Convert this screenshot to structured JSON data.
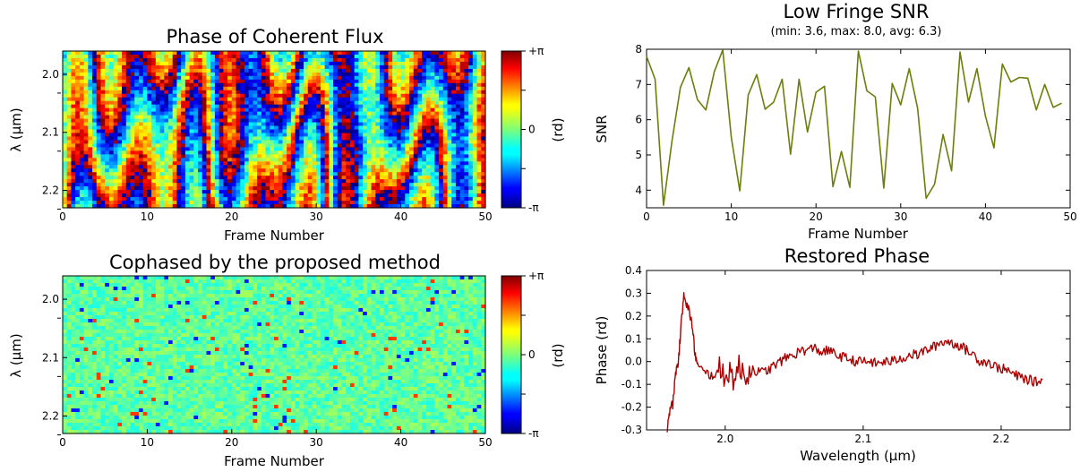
{
  "chart_data": [
    {
      "type": "heatmap",
      "title": "Phase of Coherent Flux",
      "xlabel": "Frame Number",
      "ylabel": "λ (µm)",
      "xlim": [
        0,
        50
      ],
      "ylim": [
        2.23,
        1.96
      ],
      "xticks": [
        "0",
        "10",
        "20",
        "30",
        "40",
        "50"
      ],
      "yticks": [
        "2.0",
        "2.1",
        "2.2"
      ],
      "colorbar": {
        "label": "(rd)",
        "ticks": [
          "+π",
          "0",
          "-π"
        ],
        "range": [
          -3.1416,
          3.1416
        ],
        "colormap": "jet"
      }
    },
    {
      "type": "line",
      "title": "Low Fringe SNR",
      "subtitle": "(min: 3.6, max: 8.0, avg: 6.3)",
      "xlabel": "Frame Number",
      "ylabel": "SNR",
      "xlim": [
        0,
        50
      ],
      "ylim": [
        3.5,
        8
      ],
      "xticks": [
        "0",
        "10",
        "20",
        "30",
        "40",
        "50"
      ],
      "yticks": [
        "4",
        "5",
        "6",
        "7",
        "8"
      ],
      "color": "#6b7f0a",
      "series": [
        {
          "x": [
            0,
            1,
            2,
            3,
            4,
            5,
            6,
            7,
            8,
            9,
            10,
            11,
            12,
            13,
            14,
            15,
            16,
            17,
            18,
            19,
            20,
            21,
            22,
            23,
            24,
            25,
            26,
            27,
            28,
            29,
            30,
            31,
            32,
            33,
            34,
            35,
            36,
            37,
            38,
            39,
            40,
            41,
            42,
            43,
            44,
            45,
            46,
            47,
            48,
            49
          ],
          "values": [
            7.8,
            7.15,
            3.57,
            5.4,
            6.92,
            7.48,
            6.57,
            6.28,
            7.37,
            7.98,
            5.5,
            3.98,
            6.7,
            7.28,
            6.3,
            6.5,
            7.15,
            5.02,
            7.15,
            5.65,
            6.78,
            6.95,
            4.1,
            5.1,
            4.08,
            7.95,
            6.82,
            6.65,
            4.06,
            7.03,
            6.42,
            7.45,
            6.32,
            3.77,
            4.17,
            5.58,
            4.55,
            7.92,
            6.5,
            7.45,
            6.1,
            5.2,
            7.58,
            7.07,
            7.2,
            7.18,
            6.28,
            7.0,
            6.35,
            6.47
          ]
        }
      ]
    },
    {
      "type": "heatmap",
      "title": "Cophased by the proposed method",
      "xlabel": "Frame Number",
      "ylabel": "λ (µm)",
      "xlim": [
        0,
        50
      ],
      "ylim": [
        2.23,
        1.96
      ],
      "xticks": [
        "0",
        "10",
        "20",
        "30",
        "40",
        "50"
      ],
      "yticks": [
        "2.0",
        "2.1",
        "2.2"
      ],
      "colorbar": {
        "label": "(rd)",
        "ticks": [
          "+π",
          "0",
          "-π"
        ],
        "range": [
          -3.1416,
          3.1416
        ],
        "colormap": "jet"
      }
    },
    {
      "type": "line",
      "title": "Restored Phase",
      "xlabel": "Wavelength (µm)",
      "ylabel": "Phase (rd)",
      "xlim": [
        1.943,
        2.25
      ],
      "ylim": [
        -0.3,
        0.4
      ],
      "xticks": [
        "2.0",
        "2.1",
        "2.2"
      ],
      "yticks": [
        "0.4",
        "0.3",
        "0.2",
        "0.1",
        "0.0",
        "-0.1",
        "-0.2",
        "-0.3"
      ],
      "color": "#aa0000",
      "series": [
        {
          "x": [
            1.958,
            1.96,
            1.962,
            1.964,
            1.966,
            1.968,
            1.97,
            1.972,
            1.974,
            1.976,
            1.978,
            1.98,
            1.985,
            1.99,
            1.995,
            2.0,
            2.005,
            2.01,
            2.015,
            2.02,
            2.025,
            2.03,
            2.035,
            2.04,
            2.045,
            2.05,
            2.055,
            2.06,
            2.065,
            2.07,
            2.075,
            2.08,
            2.085,
            2.09,
            2.095,
            2.1,
            2.105,
            2.11,
            2.115,
            2.12,
            2.125,
            2.13,
            2.135,
            2.14,
            2.145,
            2.15,
            2.155,
            2.16,
            2.165,
            2.17,
            2.175,
            2.18,
            2.185,
            2.19,
            2.195,
            2.2,
            2.205,
            2.21,
            2.215,
            2.22,
            2.225,
            2.23
          ],
          "values": [
            -0.29,
            -0.2,
            -0.19,
            -0.05,
            0.0,
            0.15,
            0.31,
            0.25,
            0.22,
            0.16,
            0.04,
            -0.02,
            -0.05,
            -0.06,
            -0.05,
            -0.04,
            -0.06,
            -0.04,
            -0.05,
            -0.03,
            -0.05,
            -0.04,
            -0.02,
            0.0,
            0.02,
            0.03,
            0.05,
            0.05,
            0.06,
            0.04,
            0.05,
            0.03,
            0.02,
            0.01,
            0.0,
            0.0,
            0.0,
            -0.01,
            0.0,
            0.0,
            0.01,
            0.02,
            0.03,
            0.03,
            0.05,
            0.06,
            0.08,
            0.09,
            0.08,
            0.07,
            0.05,
            0.03,
            0.0,
            0.0,
            -0.02,
            -0.03,
            -0.04,
            -0.06,
            -0.07,
            -0.08,
            -0.09,
            -0.08
          ]
        }
      ]
    }
  ]
}
